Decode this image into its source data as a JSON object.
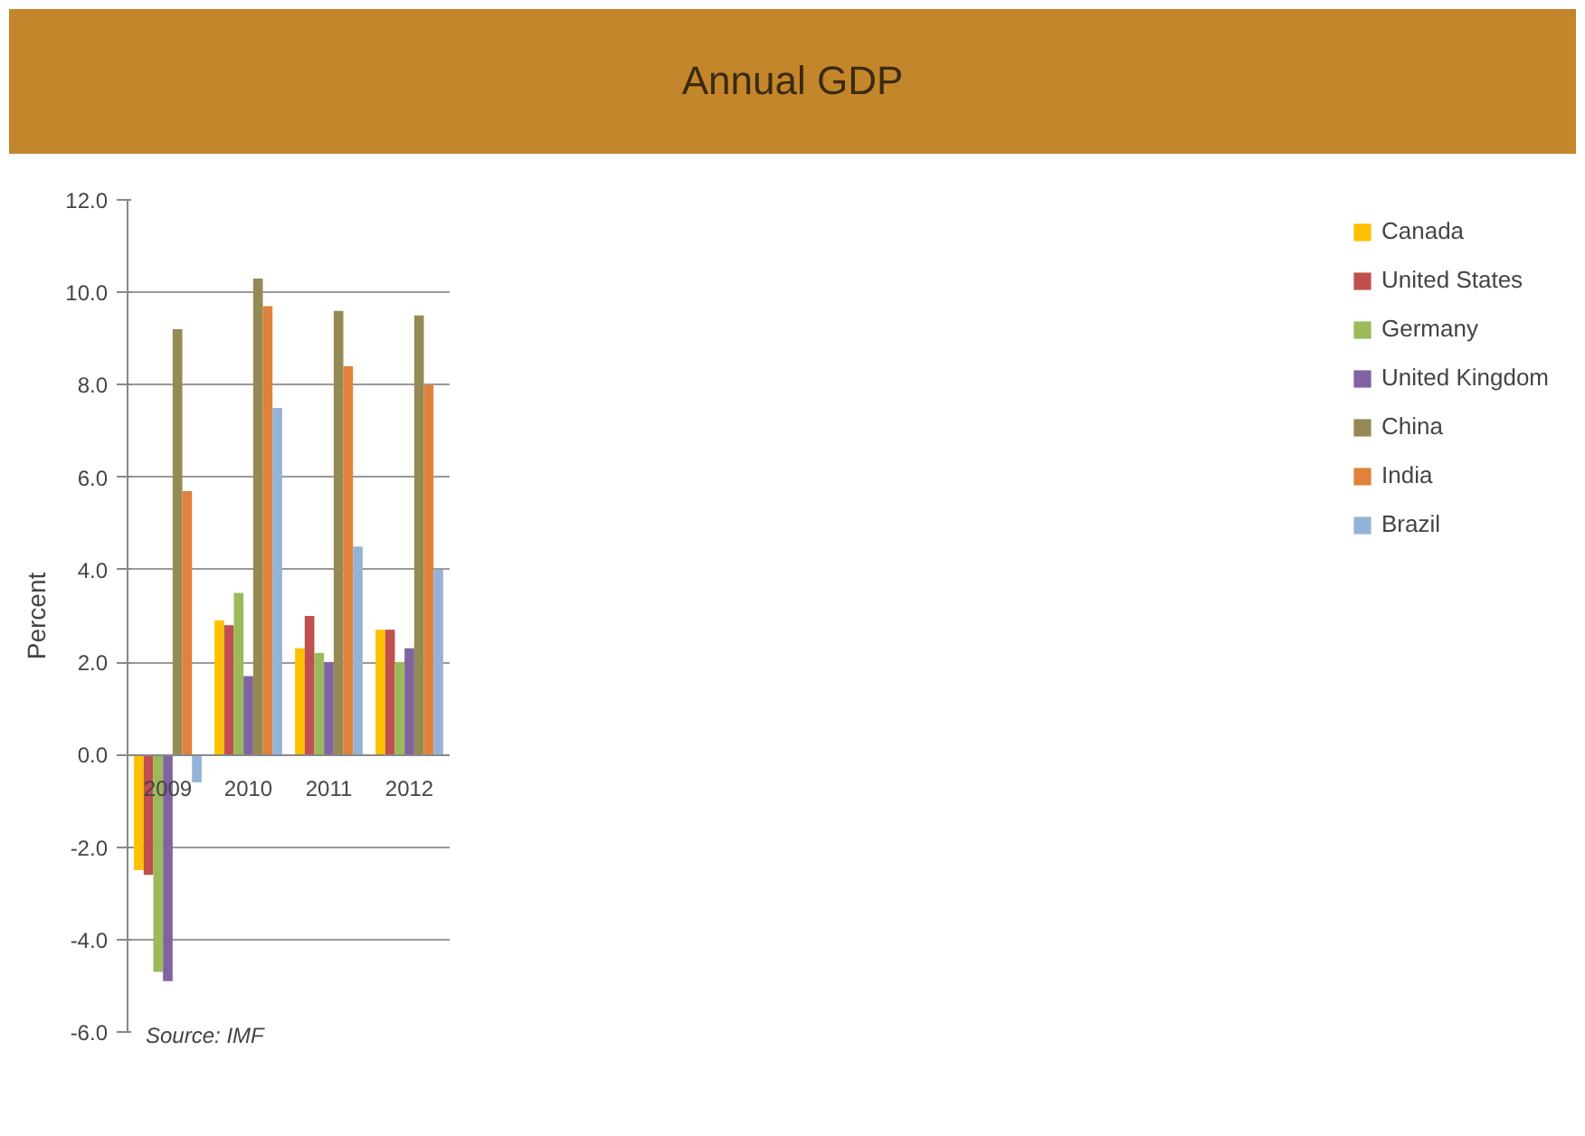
{
  "chart_data": {
    "type": "bar",
    "title": "Annual GDP",
    "ylabel": "Percent",
    "categories": [
      "2009",
      "2010",
      "2011",
      "2012"
    ],
    "series": [
      {
        "name": "Canada",
        "color": "#ffc000",
        "values": [
          -2.5,
          2.9,
          2.3,
          2.7
        ]
      },
      {
        "name": "United States",
        "color": "#c0504d",
        "values": [
          -2.6,
          2.8,
          3.0,
          2.7
        ]
      },
      {
        "name": "Germany",
        "color": "#9bbb59",
        "values": [
          -4.7,
          3.5,
          2.2,
          2.0
        ]
      },
      {
        "name": "United Kingdom",
        "color": "#8064a2",
        "values": [
          -4.9,
          1.7,
          2.0,
          2.3
        ]
      },
      {
        "name": "China",
        "color": "#948a54",
        "values": [
          9.2,
          10.3,
          9.6,
          9.5
        ]
      },
      {
        "name": "India",
        "color": "#e0823c",
        "values": [
          5.7,
          9.7,
          8.4,
          8.0
        ]
      },
      {
        "name": "Brazil",
        "color": "#95b3d7",
        "values": [
          -0.6,
          7.5,
          4.5,
          4.0
        ]
      }
    ],
    "ylim": [
      -6,
      12
    ],
    "yticks": [
      {
        "value": -6,
        "label": "-6.0"
      },
      {
        "value": -4,
        "label": "-4.0"
      },
      {
        "value": -2,
        "label": "-2.0"
      },
      {
        "value": 0,
        "label": "0.0"
      },
      {
        "value": 2,
        "label": "2.0"
      },
      {
        "value": 4,
        "label": "4.0"
      },
      {
        "value": 6,
        "label": "6.0"
      },
      {
        "value": 8,
        "label": "8.0"
      },
      {
        "value": 10,
        "label": "10.0"
      },
      {
        "value": 12,
        "label": "12.0"
      }
    ],
    "grid": "y",
    "legend": "right",
    "annotations": [
      "Source: IMF"
    ]
  }
}
